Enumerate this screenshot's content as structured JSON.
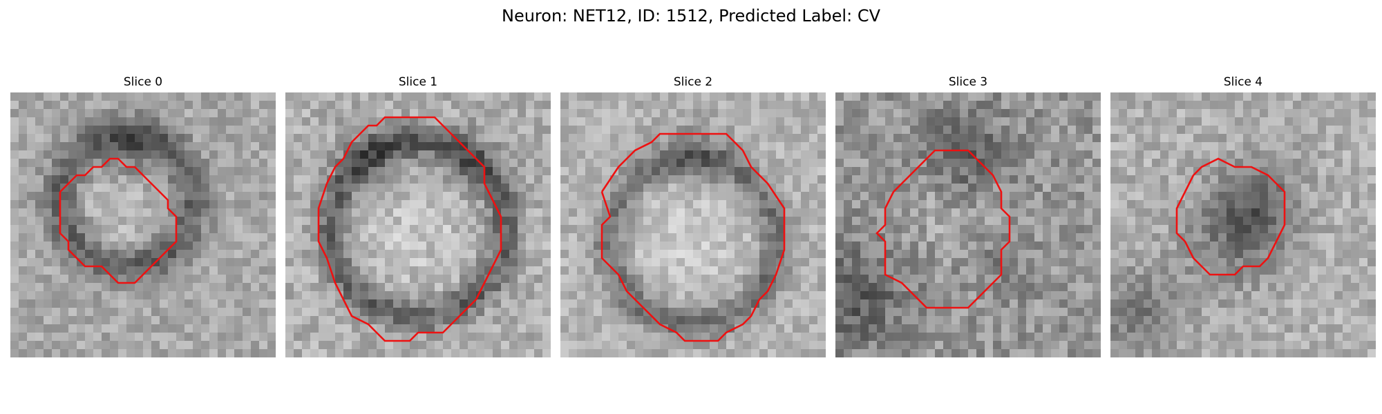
{
  "figure": {
    "title": "Neuron: NET12, ID: 1512, Predicted Label: CV"
  },
  "panels": [
    {
      "title": "Slice 0"
    },
    {
      "title": "Slice 1"
    },
    {
      "title": "Slice 2"
    },
    {
      "title": "Slice 3"
    },
    {
      "title": "Slice 4"
    }
  ],
  "colors": {
    "contour": "#ee1111",
    "background": "#ffffff"
  }
}
